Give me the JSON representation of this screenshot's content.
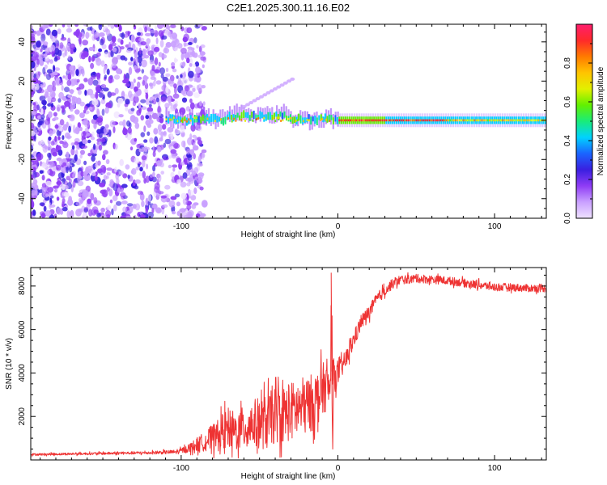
{
  "title": "C2E1.2025.300.11.16.E02",
  "chart_data": [
    {
      "type": "heatmap",
      "xlabel": "Height of straight line (km)",
      "ylabel": "Frequency (Hz)",
      "xlim": [
        -196,
        133
      ],
      "ylim": [
        -50,
        49
      ],
      "x_ticks": [
        -100,
        0,
        100
      ],
      "y_ticks": [
        -40,
        -20,
        0,
        20,
        40
      ],
      "x_tick_labels": [
        "-100",
        "0",
        "100"
      ],
      "y_tick_labels": [
        "-40",
        "-20",
        "0",
        "20",
        "40"
      ],
      "colorbar": {
        "label": "Normalized spectral amplitude",
        "range": [
          0,
          1
        ],
        "ticks": [
          0.0,
          0.2,
          0.4,
          0.6,
          0.8
        ],
        "tick_labels": [
          "0.0",
          "0.2",
          "0.4",
          "0.6",
          "0.8"
        ],
        "colors": [
          "#efe2ff",
          "#c9a0ff",
          "#8f3cf5",
          "#3a1fe0",
          "#1a64ff",
          "#00d2ff",
          "#19ec7a",
          "#62f000",
          "#e2f000",
          "#ffc400",
          "#ff7a00",
          "#ff2a2a",
          "#ff1e6e"
        ]
      },
      "features": {
        "noise_region_x": [
          -196,
          -95
        ],
        "band_center_hz": 0,
        "band_start_x": -110,
        "strong_band_start_x": 0
      }
    },
    {
      "type": "line",
      "xlabel": "Height of straight line (km)",
      "ylabel": "SNR (10 * v/v)",
      "xlim": [
        -196,
        133
      ],
      "ylim": [
        0,
        8850
      ],
      "x_ticks": [
        -100,
        0,
        100
      ],
      "y_ticks": [
        2000,
        4000,
        6000,
        8000
      ],
      "x_tick_labels": [
        "-100",
        "0",
        "100"
      ],
      "y_tick_labels": [
        "2000",
        "4000",
        "6000",
        "8000"
      ],
      "line_color": "#ee3333",
      "series": [
        {
          "name": "SNR",
          "x": [
            -196,
            -150,
            -120,
            -102,
            -95,
            -85,
            -75,
            -70,
            -65,
            -55,
            -45,
            -40,
            -35,
            -25,
            -15,
            -8,
            -5,
            -4,
            -3,
            0,
            5,
            10,
            15,
            20,
            25,
            30,
            35,
            40,
            45,
            50,
            60,
            70,
            80,
            90,
            100,
            110,
            120,
            133
          ],
          "y": [
            250,
            300,
            330,
            370,
            550,
            850,
            1200,
            1450,
            1300,
            1650,
            1750,
            2050,
            2100,
            2350,
            2700,
            3400,
            3200,
            6000,
            3800,
            3950,
            4600,
            5500,
            6350,
            6800,
            7400,
            7800,
            8100,
            8300,
            8300,
            8350,
            8300,
            8250,
            8150,
            8050,
            7950,
            7950,
            7900,
            7900
          ],
          "noise": [
            50,
            60,
            70,
            100,
            200,
            450,
            800,
            950,
            900,
            1100,
            1300,
            1300,
            1350,
            1400,
            1300,
            1200,
            800,
            2000,
            900,
            500,
            450,
            400,
            350,
            320,
            300,
            260,
            230,
            220,
            200,
            200,
            200,
            190,
            190,
            190,
            190,
            180,
            180,
            180
          ]
        }
      ],
      "annotations": [
        {
          "x": -4,
          "y": 8600,
          "text": ""
        },
        {
          "x": -3,
          "y": 200,
          "text": ""
        }
      ]
    }
  ]
}
